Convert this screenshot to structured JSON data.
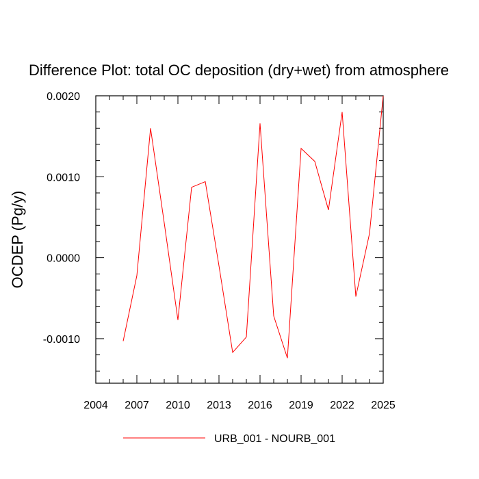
{
  "chart_data": {
    "type": "line",
    "title": "Difference Plot: total OC deposition (dry+wet) from atmosphere",
    "xlabel": "",
    "ylabel": "OCDEP  (Pg/y)",
    "xlim": [
      2004,
      2025
    ],
    "ylim": [
      -0.00155,
      0.002
    ],
    "xticks": [
      2004,
      2007,
      2010,
      2013,
      2016,
      2019,
      2022,
      2025
    ],
    "xtick_labels": [
      "2004",
      "2007",
      "2010",
      "2013",
      "2016",
      "2019",
      "2022",
      "2025"
    ],
    "yticks": [
      -0.001,
      0.0,
      0.001,
      0.002
    ],
    "ytick_labels": [
      "-0.0010",
      "0.0000",
      "0.0010",
      "0.0020"
    ],
    "x_minor_step": 1,
    "y_minor_step": 0.0002,
    "grid": false,
    "legend_position": "bottom-center",
    "series": [
      {
        "name": "URB_001 - NOURB_001",
        "color": "#ff0000",
        "x": [
          2006,
          2007,
          2008,
          2009,
          2010,
          2011,
          2012,
          2013,
          2014,
          2015,
          2016,
          2017,
          2018,
          2019,
          2020,
          2021,
          2022,
          2023,
          2024,
          2025
        ],
        "y": [
          -0.00103,
          -0.00022,
          0.0016,
          0.00043,
          -0.00077,
          0.00087,
          0.00094,
          -0.0001,
          -0.00117,
          -0.00098,
          0.00166,
          -0.00072,
          -0.00124,
          0.00135,
          0.00119,
          0.00059,
          0.0018,
          -0.00048,
          0.0003,
          0.002
        ]
      }
    ]
  }
}
